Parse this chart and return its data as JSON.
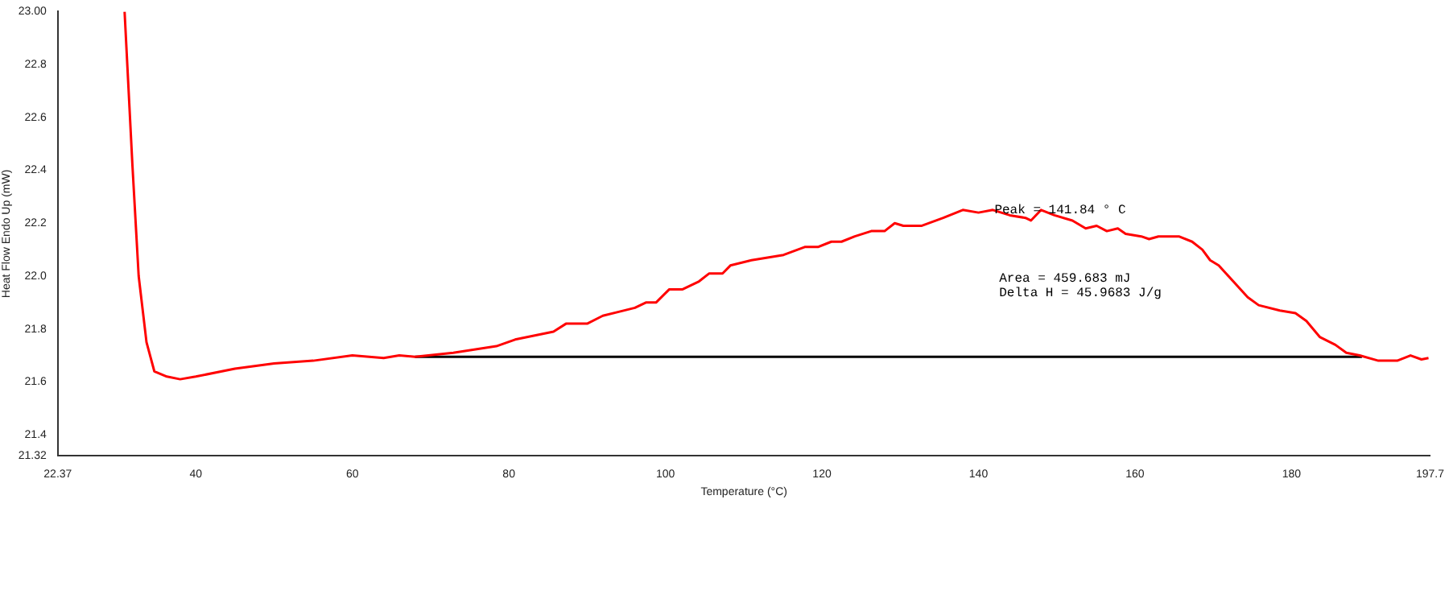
{
  "chart_data": {
    "type": "line",
    "xlabel": "Temperature (°C)",
    "ylabel": "Heat Flow Endo Up (mW)",
    "xlim": [
      22.37,
      197.7
    ],
    "xticks": [
      {
        "value": 22.37,
        "label": "22.37"
      },
      40,
      60,
      80,
      100,
      120,
      140,
      160,
      180,
      {
        "value": 197.7,
        "label": "197.7"
      }
    ],
    "ylim": [
      21.32,
      23.0
    ],
    "yticks": [
      {
        "value": 21.32,
        "label": "21.32"
      },
      21.4,
      21.6,
      21.8,
      {
        "value": 22.0,
        "label": "22.0"
      },
      22.2,
      22.4,
      22.6,
      22.8,
      {
        "value": 23.0,
        "label": "23.00"
      }
    ],
    "grid": false,
    "legend": false,
    "marker": "none",
    "line_style": "solid",
    "series": [
      {
        "color": "#ff0000",
        "x": [
          30.9,
          31.9,
          32.7,
          33.7,
          34.7,
          36.3,
          38.0,
          40,
          45,
          50,
          55,
          60,
          64,
          66,
          68,
          72.9,
          78.4,
          80.8,
          85.7,
          87.3,
          90.0,
          92.0,
          96.1,
          97.5,
          98.8,
          100.5,
          102.2,
          104.3,
          105.6,
          107.3,
          108.3,
          111.0,
          115.1,
          117.8,
          119.5,
          121.2,
          122.5,
          124.2,
          126.3,
          128.0,
          129.3,
          130.4,
          132.7,
          135.5,
          138.0,
          140,
          141.84,
          144,
          146,
          146.7,
          148,
          149.7,
          152.0,
          153.7,
          155.1,
          156.4,
          157.8,
          158.8,
          160.8,
          161.8,
          163.0,
          164.2,
          165.6,
          167.3,
          168.6,
          169.6,
          170.7,
          174.4,
          175.8,
          178.5,
          180.5,
          181.9,
          183.6,
          185.6,
          187.0,
          188.7,
          191.1,
          193.5,
          195.2,
          196.6,
          197.5
        ],
        "values": [
          23.0,
          22.42,
          22.0,
          21.75,
          21.64,
          21.62,
          21.61,
          21.62,
          21.65,
          21.67,
          21.68,
          21.7,
          21.69,
          21.7,
          21.695,
          21.71,
          21.735,
          21.76,
          21.79,
          21.82,
          21.82,
          21.85,
          21.88,
          21.9,
          21.9,
          21.95,
          21.95,
          21.98,
          22.01,
          22.01,
          22.04,
          22.06,
          22.08,
          22.11,
          22.11,
          22.13,
          22.13,
          22.15,
          22.17,
          22.17,
          22.2,
          22.19,
          22.19,
          22.22,
          22.25,
          22.24,
          22.25,
          22.23,
          22.22,
          22.21,
          22.25,
          22.23,
          22.21,
          22.18,
          22.19,
          22.17,
          22.18,
          22.16,
          22.15,
          22.14,
          22.15,
          22.15,
          22.15,
          22.13,
          22.1,
          22.06,
          22.04,
          21.92,
          21.89,
          21.87,
          21.86,
          21.83,
          21.77,
          21.74,
          21.71,
          21.7,
          21.68,
          21.68,
          21.7,
          21.685,
          21.69
        ]
      },
      {
        "color": "#000000",
        "x": [
          68,
          189
        ],
        "values": [
          21.695,
          21.695
        ]
      }
    ],
    "annotations": [
      {
        "text": "Peak = 141.84 ° C",
        "x": 141.84,
        "y": 22.25
      },
      "Area = 459.683 mJ",
      "Delta H = 45.9683 J/g"
    ]
  }
}
